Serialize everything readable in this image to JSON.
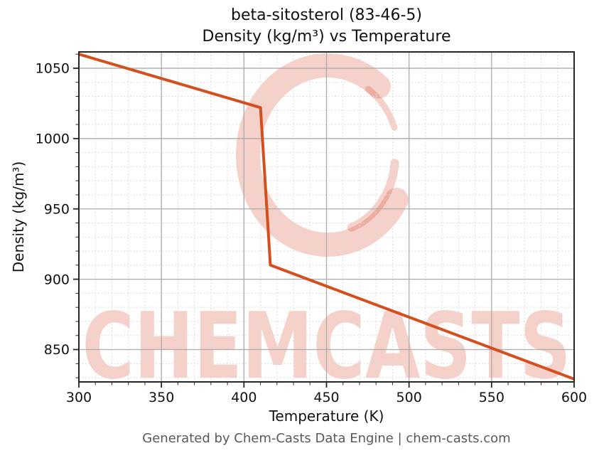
{
  "title": {
    "line1": "beta-sitosterol (83-46-5)",
    "line2": "Density (kg/m³) vs Temperature"
  },
  "footer": {
    "text": "Generated by Chem-Casts Data Engine | chem-casts.com"
  },
  "watermark": {
    "text": "CHEMCASTS",
    "logo": "c-swirl-logo",
    "color_rgba": "rgba(214,64,34,0.24)"
  },
  "colors": {
    "line": "#d3501e",
    "grid_major": "#ababab",
    "grid_minor": "#dcdcdc",
    "spine": "#262626",
    "tick_label": "#111111",
    "footer_text": "#595959"
  },
  "chart_data": {
    "type": "line",
    "title": "beta-sitosterol (83-46-5) — Density (kg/m³) vs Temperature",
    "xlabel": "Temperature (K)",
    "ylabel": "Density (kg/m³)",
    "xlim": [
      300,
      600
    ],
    "ylim": [
      827,
      1061.6
    ],
    "xticks": [
      300,
      350,
      400,
      450,
      500,
      550,
      600
    ],
    "yticks": [
      850,
      900,
      950,
      1000,
      1050
    ],
    "minor_step_x": 10,
    "minor_step_y": 10,
    "grid": true,
    "legend": false,
    "series": [
      {
        "name": "density",
        "color": "#d3501e",
        "points": [
          [
            300,
            1060
          ],
          [
            410,
            1022
          ],
          [
            416,
            910
          ],
          [
            600,
            829
          ]
        ]
      }
    ]
  }
}
